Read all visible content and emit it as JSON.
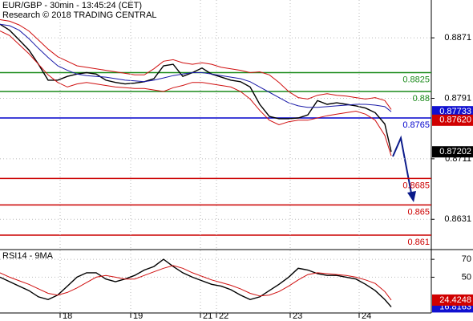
{
  "chart_data": [
    {
      "type": "line",
      "title": "EUR/GBP - 30min - 13:45:24 (CET)",
      "subtitle": "Research © 2018 TRADING CENTRAL",
      "x": [
        0,
        3,
        6,
        9,
        12,
        15,
        18,
        21,
        24,
        27,
        30,
        33,
        36,
        39,
        42,
        45,
        48,
        51,
        54,
        57,
        60,
        63,
        66,
        69,
        72,
        75,
        78,
        81,
        84,
        87,
        90,
        93,
        96,
        99,
        102,
        105,
        108,
        111,
        114,
        117,
        120,
        122
      ],
      "xlim": [
        0,
        134.5
      ],
      "ylim": [
        0.8592,
        0.8921
      ],
      "yticks": [
        0.8871,
        0.8791,
        0.8711,
        0.8631
      ],
      "grid": true,
      "series": [
        {
          "color": "#000000",
          "values": [
            0.8889,
            0.8881,
            0.8868,
            0.8855,
            0.8836,
            0.8815,
            0.8815,
            0.882,
            0.8823,
            0.8825,
            0.8823,
            0.8815,
            0.8812,
            0.881,
            0.8811,
            0.8813,
            0.8817,
            0.8834,
            0.8836,
            0.882,
            0.8825,
            0.8831,
            0.8823,
            0.8819,
            0.8815,
            0.8813,
            0.8806,
            0.8783,
            0.8767,
            0.8764,
            0.8764,
            0.8765,
            0.8769,
            0.8788,
            0.8783,
            0.8785,
            0.8783,
            0.8781,
            0.8778,
            0.8772,
            0.8757,
            0.87202
          ]
        },
        {
          "color": "#1a1aa8",
          "values": [
            0.8889,
            0.8887,
            0.8881,
            0.887,
            0.8857,
            0.8845,
            0.8834,
            0.8828,
            0.8823,
            0.8821,
            0.882,
            0.8819,
            0.8817,
            0.8815,
            0.8814,
            0.8813,
            0.8815,
            0.8818,
            0.8821,
            0.8823,
            0.8825,
            0.8825,
            0.8823,
            0.8821,
            0.8819,
            0.8817,
            0.8813,
            0.8806,
            0.8799,
            0.8792,
            0.8785,
            0.8781,
            0.8779,
            0.8779,
            0.878,
            0.8781,
            0.8782,
            0.8783,
            0.8783,
            0.8782,
            0.878,
            0.87733
          ]
        },
        {
          "color": "#d01010",
          "values": [
            0.8895,
            0.8893,
            0.8888,
            0.888,
            0.8868,
            0.8856,
            0.8846,
            0.884,
            0.8834,
            0.8832,
            0.883,
            0.8828,
            0.8826,
            0.8824,
            0.8822,
            0.8822,
            0.883,
            0.884,
            0.8842,
            0.8838,
            0.8836,
            0.8838,
            0.8836,
            0.8832,
            0.883,
            0.8828,
            0.8825,
            0.8826,
            0.8822,
            0.8812,
            0.88,
            0.8792,
            0.879,
            0.8795,
            0.8797,
            0.8795,
            0.8794,
            0.8792,
            0.879,
            0.8792,
            0.8788,
            0.87762
          ]
        },
        {
          "color": "#d01010",
          "values": [
            0.888,
            0.8874,
            0.8862,
            0.885,
            0.8836,
            0.8822,
            0.8812,
            0.8806,
            0.881,
            0.8812,
            0.881,
            0.8808,
            0.8806,
            0.8805,
            0.8804,
            0.8804,
            0.8802,
            0.88,
            0.8805,
            0.8808,
            0.8812,
            0.8812,
            0.881,
            0.8808,
            0.8806,
            0.88,
            0.879,
            0.8775,
            0.8762,
            0.8756,
            0.876,
            0.8762,
            0.8762,
            0.8765,
            0.8768,
            0.877,
            0.8772,
            0.8774,
            0.877,
            0.8762,
            0.8742,
            0.8715
          ]
        }
      ],
      "levels": [
        {
          "value": 0.8825,
          "color": "#1a8a1a"
        },
        {
          "value": 0.88,
          "color": "#1a8a1a"
        },
        {
          "value": 0.8765,
          "color": "#0000cc"
        },
        {
          "value": 0.8685,
          "color": "#cc0000"
        },
        {
          "value": 0.865,
          "color": "#cc0000"
        },
        {
          "value": 0.861,
          "color": "#cc0000"
        }
      ],
      "price_tags": [
        {
          "value": 0.87733,
          "color": "#1010d0"
        },
        {
          "value": 0.8762,
          "label": "0.87620",
          "color": "#d00000"
        },
        {
          "value": 0.87202,
          "color": "#000000"
        }
      ]
    },
    {
      "type": "line",
      "title": "RSI14 - 9MA",
      "x": [
        0,
        3,
        6,
        9,
        12,
        15,
        18,
        21,
        24,
        27,
        30,
        33,
        36,
        39,
        42,
        45,
        48,
        51,
        54,
        57,
        60,
        63,
        66,
        69,
        72,
        75,
        78,
        81,
        84,
        87,
        90,
        93,
        96,
        99,
        102,
        105,
        108,
        111,
        114,
        117,
        120,
        122
      ],
      "xlim": [
        0,
        134.5
      ],
      "ylim": [
        10,
        80
      ],
      "yticks": [
        70,
        50
      ],
      "grid": true,
      "xticks": [
        {
          "value": 18.75,
          "label": "18"
        },
        {
          "value": 40.75,
          "label": "19"
        },
        {
          "value": 62.5,
          "label": "21"
        },
        {
          "value": 67.5,
          "label": "22"
        },
        {
          "value": 90.5,
          "label": "23"
        },
        {
          "value": 112,
          "label": "24"
        }
      ],
      "series": [
        {
          "color": "#000000",
          "tag_color": "#1010d0",
          "values": [
            50,
            45,
            40,
            35,
            28,
            25,
            30,
            40,
            50,
            55,
            55,
            48,
            45,
            48,
            52,
            58,
            62,
            70,
            62,
            55,
            50,
            46,
            42,
            40,
            36,
            30,
            25,
            28,
            35,
            42,
            50,
            60,
            58,
            54,
            52,
            52,
            50,
            48,
            42,
            35,
            25,
            16.8163
          ]
        },
        {
          "color": "#d01010",
          "tag_color": "#d00000",
          "values": [
            55,
            50,
            46,
            42,
            37,
            32,
            30,
            33,
            38,
            44,
            50,
            52,
            50,
            48,
            48,
            52,
            56,
            60,
            63,
            60,
            55,
            51,
            47,
            44,
            41,
            37,
            32,
            29,
            30,
            34,
            40,
            47,
            53,
            55,
            54,
            53,
            52,
            50,
            47,
            43,
            34,
            24.4248
          ]
        }
      ]
    }
  ]
}
